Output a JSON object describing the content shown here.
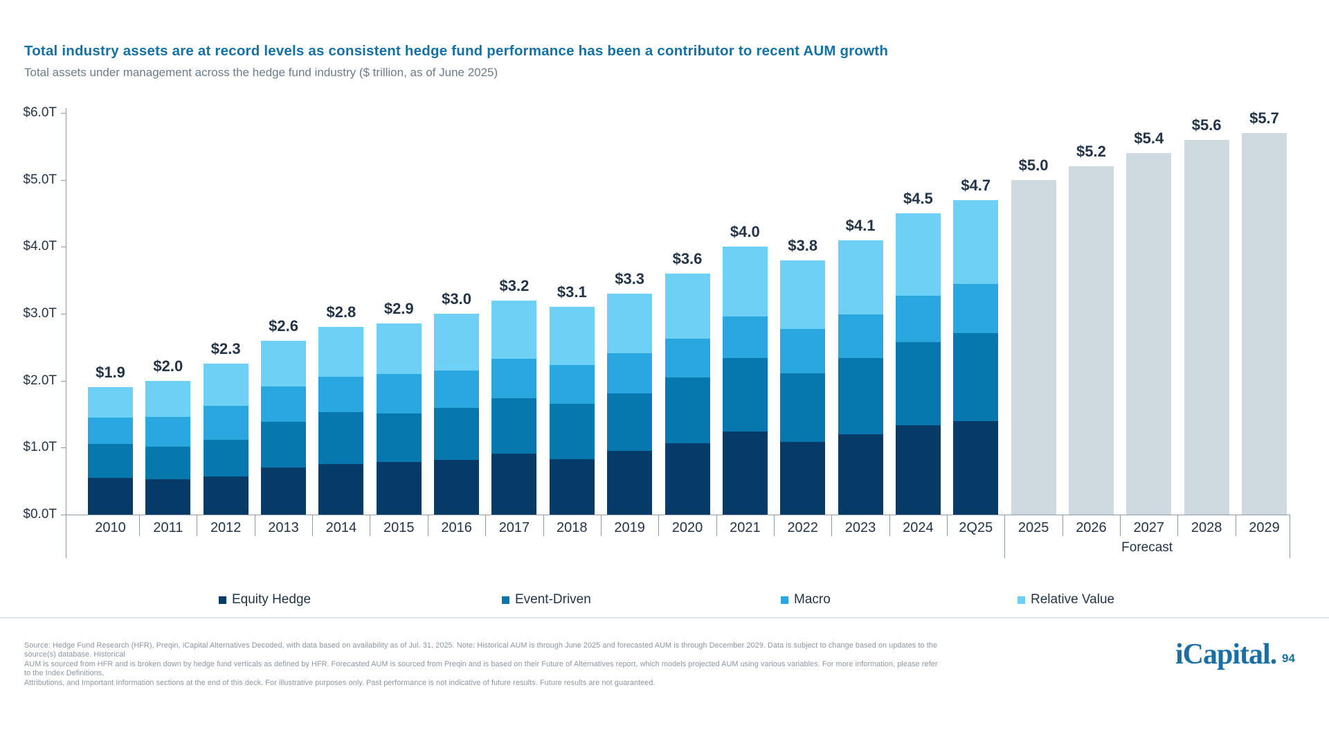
{
  "page": {
    "title": "Total industry assets are at record levels as consistent hedge fund performance has been a contributor to recent AUM growth",
    "subtitle": "Total assets under management across the hedge fund industry ($ trillion, as of June 2025)"
  },
  "chart_data": {
    "type": "bar",
    "stacked": true,
    "title": "Total assets under management across the hedge fund industry",
    "unit": "$ trillion",
    "ylim": [
      0,
      6
    ],
    "grid": false,
    "legend_position": "bottom",
    "ytick_labels": [
      "$0.0T",
      "$1.0T",
      "$2.0T",
      "$3.0T",
      "$4.0T",
      "$5.0T",
      "$6.0T"
    ],
    "categories": [
      "2010",
      "2011",
      "2012",
      "2013",
      "2014",
      "2015",
      "2016",
      "2017",
      "2018",
      "2019",
      "2020",
      "2021",
      "2022",
      "2023",
      "2024",
      "2Q25",
      "2025",
      "2026",
      "2027",
      "2028",
      "2029"
    ],
    "series": [
      {
        "name": "Equity Hedge",
        "color": "#063a67",
        "values": [
          0.55,
          0.53,
          0.57,
          0.7,
          0.76,
          0.79,
          0.82,
          0.91,
          0.83,
          0.95,
          1.07,
          1.24,
          1.09,
          1.2,
          1.33,
          1.4
        ]
      },
      {
        "name": "Event-Driven",
        "color": "#0678ad",
        "values": [
          0.5,
          0.48,
          0.55,
          0.69,
          0.77,
          0.72,
          0.77,
          0.83,
          0.82,
          0.86,
          0.98,
          1.1,
          1.02,
          1.14,
          1.25,
          1.31
        ]
      },
      {
        "name": "Macro",
        "color": "#2aa7de",
        "values": [
          0.4,
          0.45,
          0.5,
          0.52,
          0.53,
          0.59,
          0.56,
          0.59,
          0.58,
          0.6,
          0.58,
          0.62,
          0.66,
          0.65,
          0.69,
          0.73
        ]
      },
      {
        "name": "Relative Value",
        "color": "#6fd0f6",
        "values": [
          0.45,
          0.54,
          0.63,
          0.69,
          0.74,
          0.75,
          0.85,
          0.87,
          0.87,
          0.89,
          0.97,
          1.04,
          1.03,
          1.11,
          1.23,
          1.26
        ]
      }
    ],
    "forecast": {
      "name": "Forecast",
      "color": "#cfd9e0",
      "start_index": 16,
      "values": [
        5.0,
        5.2,
        5.4,
        5.6,
        5.7
      ],
      "label": "Forecast"
    },
    "total_labels": [
      "$1.9",
      "$2.0",
      "$2.3",
      "$2.6",
      "$2.8",
      "$2.9",
      "$3.0",
      "$3.2",
      "$3.1",
      "$3.3",
      "$3.6",
      "$4.0",
      "$3.8",
      "$4.1",
      "$4.5",
      "$4.7",
      "$5.0",
      "$5.2",
      "$5.4",
      "$5.6",
      "$5.7"
    ],
    "legend": [
      {
        "label": "Equity Hedge",
        "color": "#063a67"
      },
      {
        "label": "Event-Driven",
        "color": "#0678ad"
      },
      {
        "label": "Macro",
        "color": "#2aa7de"
      },
      {
        "label": "Relative Value",
        "color": "#6fd0f6"
      }
    ]
  },
  "colors": {
    "title": "#1471a5",
    "subtitle": "#6b7b88",
    "axis": "#8e99a1",
    "label": "#233447",
    "legend_text": "#243447",
    "footer": "#8a95a0",
    "logo": "#1b6fa3"
  },
  "footer": {
    "lines": [
      "Source: Hedge Fund Research (HFR), Preqin, iCapital Alternatives Decoded, with data based on availability as of Jul. 31, 2025. Note: Historical AUM is through June 2025 and forecasted AUM is through December 2029. Data is subject to change based on updates to the source(s) database. Historical",
      "AUM is sourced from HFR and is broken down by hedge fund verticals as defined by HFR. Forecasted AUM is sourced from Preqin and is based on their Future of Alternatives report, which models projected AUM using various variables. For more information, please refer to the Index Definitions,",
      "Attributions, and Important Information sections at the end of this deck. For illustrative purposes only. Past performance is not indicative of future results. Future results are not guaranteed."
    ]
  },
  "logo": {
    "text": "iCapital",
    "dot": ".",
    "page_number": "94"
  }
}
